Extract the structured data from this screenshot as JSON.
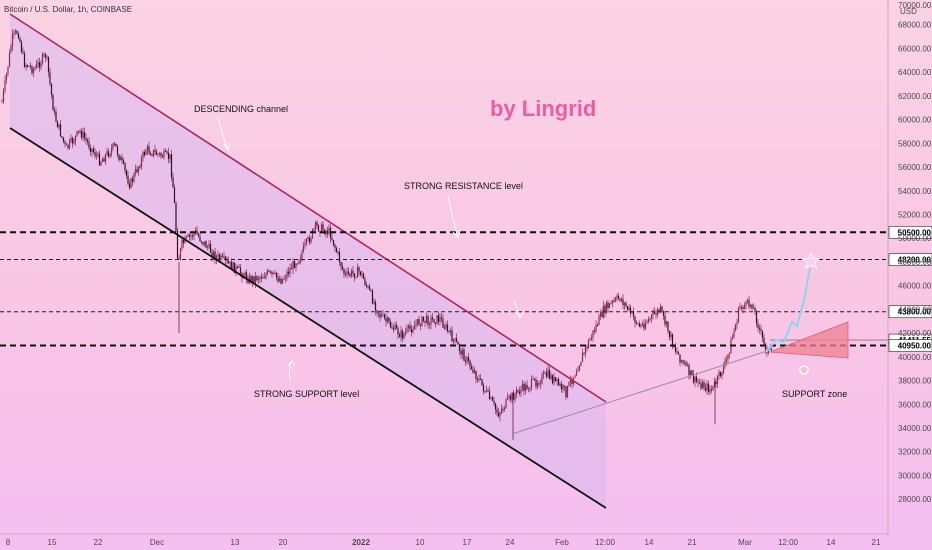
{
  "header": {
    "symbol": "Bitcoin / U.S. Dollar, 1h, COINBASE",
    "currency": "USD"
  },
  "brand": "by Lingrid",
  "chart_data": {
    "type": "line",
    "title": "",
    "xlabel": "",
    "ylabel": "",
    "ylim": [
      27000,
      70000
    ],
    "y_ticks": [
      "70000.00",
      "68000.00",
      "66000.00",
      "64000.00",
      "62000.00",
      "60000.00",
      "58000.00",
      "56000.00",
      "54000.00",
      "52000.00",
      "50000.00",
      "48000.00",
      "46000.00",
      "44000.00",
      "42000.00",
      "40000.00",
      "38000.00",
      "36000.00",
      "34000.00",
      "32000.00",
      "30000.00",
      "28000.00"
    ],
    "x_ticks": [
      "8",
      "15",
      "22",
      "Dec",
      "13",
      "20",
      "2022",
      "10",
      "17",
      "24",
      "Feb",
      "12:00",
      "14",
      "21",
      "Mar",
      "12:00",
      "14",
      "21"
    ],
    "series": [
      {
        "x": [
          "Nov 6",
          "Nov 7",
          "Nov 8",
          "Nov 9",
          "Nov 10",
          "Nov 12",
          "Nov 15",
          "Nov 16",
          "Nov 18",
          "Nov 20",
          "Nov 22",
          "Nov 24",
          "Nov 26",
          "Nov 28",
          "Nov 30",
          "Dec 2",
          "Dec 3",
          "Dec 4",
          "Dec 5",
          "Dec 7",
          "Dec 10",
          "Dec 13",
          "Dec 15",
          "Dec 18",
          "Dec 20",
          "Dec 23",
          "Dec 26",
          "Dec 28",
          "Dec 31",
          "Jan 2",
          "Jan 5",
          "Jan 7",
          "Jan 10",
          "Jan 13",
          "Jan 17",
          "Jan 20",
          "Jan 22",
          "Jan 24",
          "Jan 26",
          "Jan 28",
          "Jan 31",
          "Feb 2",
          "Feb 5",
          "Feb 8",
          "Feb 10",
          "Feb 13",
          "Feb 16",
          "Feb 18",
          "Feb 21",
          "Feb 24",
          "Feb 26",
          "Feb 28",
          "Mar 2",
          "Mar 5",
          "Mar 7"
        ],
        "y": [
          61500,
          63500,
          66800,
          67500,
          64800,
          64200,
          65500,
          60500,
          57500,
          59000,
          56500,
          57800,
          54500,
          57500,
          57000,
          56800,
          53500,
          48000,
          49500,
          50500,
          48500,
          47500,
          46500,
          47000,
          46500,
          48500,
          51000,
          50500,
          46800,
          47200,
          43500,
          42500,
          41800,
          43000,
          43200,
          38500,
          35200,
          36500,
          37200,
          37800,
          38500,
          37000,
          41500,
          44000,
          45000,
          42500,
          44000,
          40500,
          38000,
          37200,
          39500,
          44200,
          44500,
          41000,
          40200
        ]
      }
    ],
    "levels": [
      {
        "value": 50500,
        "label": "50500.00",
        "style": "bold-dashed"
      },
      {
        "value": 48200,
        "label": "48200.00",
        "style": "dashed"
      },
      {
        "value": 43800,
        "label": "43800.00",
        "style": "dashed"
      },
      {
        "value": 41411.55,
        "label": "41411.55",
        "style": "current"
      },
      {
        "value": 40950,
        "label": "40950.00",
        "style": "bold-dashed"
      }
    ],
    "annotations": {
      "descending": "DESCENDING channel",
      "resistance": "STRONG RESISTANCE level",
      "support": "STRONG SUPPORT level",
      "support_zone": "SUPPORT zone"
    },
    "grid": false,
    "colors": {
      "candles": "#6b1a3a",
      "resistance_line": "#b0245e",
      "support_line": "#111111",
      "channel_fill": "#d9b8ef",
      "zone_fill": "#f08090",
      "projection": "#8fd3f0",
      "brand": "#e85fa3"
    }
  }
}
